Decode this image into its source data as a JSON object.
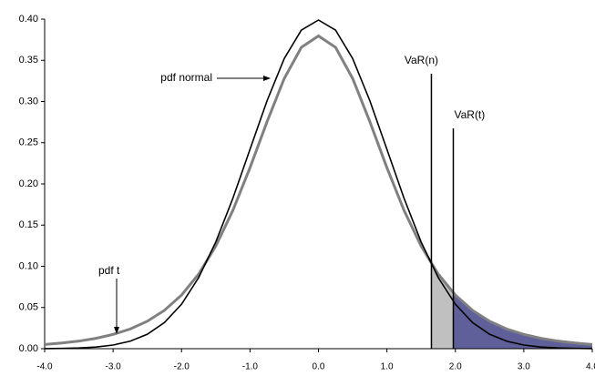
{
  "chart_data": {
    "type": "line",
    "x": [
      -4,
      -3.75,
      -3.5,
      -3.25,
      -3,
      -2.75,
      -2.5,
      -2.25,
      -2,
      -1.75,
      -1.5,
      -1.25,
      -1,
      -0.75,
      -0.5,
      -0.25,
      0,
      0.25,
      0.5,
      0.75,
      1,
      1.25,
      1.5,
      1.75,
      2,
      2.25,
      2.5,
      2.75,
      3,
      3.25,
      3.5,
      3.75,
      4
    ],
    "series": [
      {
        "name": "pdf normal",
        "color": "#000000",
        "values": [
          0.0001,
          0.0004,
          0.0009,
          0.002,
          0.0044,
          0.0091,
          0.0175,
          0.0317,
          0.054,
          0.0863,
          0.1295,
          0.1826,
          0.242,
          0.3011,
          0.3521,
          0.3867,
          0.3989,
          0.3867,
          0.3521,
          0.3011,
          0.242,
          0.1826,
          0.1295,
          0.0863,
          0.054,
          0.0317,
          0.0175,
          0.0091,
          0.0044,
          0.002,
          0.0009,
          0.0004,
          0.0001
        ]
      },
      {
        "name": "pdf t",
        "color": "#808080",
        "values": [
          0.0051,
          0.0069,
          0.0092,
          0.0126,
          0.0173,
          0.0239,
          0.0333,
          0.0466,
          0.0651,
          0.0905,
          0.1245,
          0.1679,
          0.2197,
          0.2757,
          0.3279,
          0.3657,
          0.3796,
          0.3657,
          0.3279,
          0.2757,
          0.2197,
          0.1679,
          0.1245,
          0.0905,
          0.0651,
          0.0466,
          0.0333,
          0.0239,
          0.0173,
          0.0126,
          0.0092,
          0.0069,
          0.0051
        ]
      }
    ],
    "var_lines": [
      {
        "label": "VaR(n)",
        "x": 1.65,
        "fill": "#c0c0c0"
      },
      {
        "label": "VaR(t)",
        "x": 1.97,
        "fill": "#5f5f99"
      }
    ],
    "xlim": [
      -4,
      4
    ],
    "ylim": [
      0,
      0.4
    ],
    "xticks": [
      {
        "value": -4,
        "label": "-4.0"
      },
      {
        "value": -3,
        "label": "-3.0"
      },
      {
        "value": -2,
        "label": "-2.0"
      },
      {
        "value": -1,
        "label": "-1.0"
      },
      {
        "value": 0,
        "label": "0.0"
      },
      {
        "value": 1,
        "label": "1.0"
      },
      {
        "value": 2,
        "label": "2.0"
      },
      {
        "value": 3,
        "label": "3.0"
      },
      {
        "value": 4,
        "label": "4.0"
      }
    ],
    "yticks": [
      {
        "value": 0,
        "label": "0.00"
      },
      {
        "value": 0.05,
        "label": "0.05"
      },
      {
        "value": 0.1,
        "label": "0.10"
      },
      {
        "value": 0.15,
        "label": "0.15"
      },
      {
        "value": 0.2,
        "label": "0.20"
      },
      {
        "value": 0.25,
        "label": "0.25"
      },
      {
        "value": 0.3,
        "label": "0.30"
      },
      {
        "value": 0.35,
        "label": "0.35"
      },
      {
        "value": 0.4,
        "label": "0.40"
      }
    ]
  }
}
